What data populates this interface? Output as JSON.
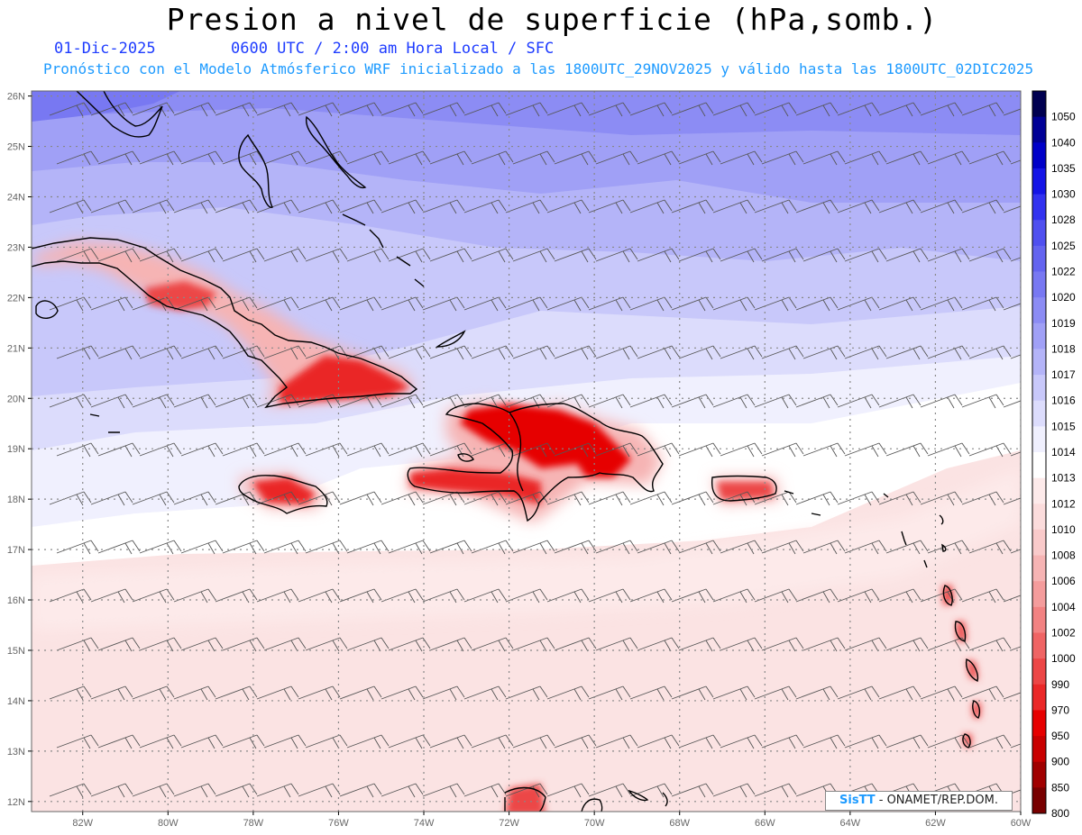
{
  "header": {
    "title": "Presion a nivel de superficie (hPa,somb.)",
    "date": "01-Dic-2025",
    "time_info": "0600 UTC / 2:00 am Hora Local / SFC",
    "forecast_info": "Pronóstico con el Modelo Atmósferico WRF inicializado a las 1800UTC_29NOV2025 y válido hasta las  1800UTC_02DIC2025"
  },
  "map": {
    "lat_labels": [
      "26N",
      "25N",
      "24N",
      "23N",
      "22N",
      "21N",
      "20N",
      "19N",
      "18N",
      "17N",
      "16N",
      "15N",
      "14N",
      "13N",
      "12N"
    ],
    "lon_labels": [
      "82W",
      "80W",
      "78W",
      "76W",
      "74W",
      "72W",
      "70W",
      "68W",
      "66W",
      "64W",
      "62W",
      "60W"
    ],
    "gridline_color": "#888888",
    "coastline_color": "#000000"
  },
  "colorbar": {
    "levels": [
      "1050",
      "1040",
      "1035",
      "1030",
      "1028",
      "1025",
      "1022",
      "1020",
      "1019",
      "1018",
      "1017",
      "1016",
      "1015",
      "1014",
      "1013",
      "1012",
      "1010",
      "1008",
      "1006",
      "1004",
      "1002",
      "1000",
      "990",
      "970",
      "950",
      "900",
      "850",
      "800"
    ],
    "colors": [
      "#000050",
      "#000096",
      "#0000c8",
      "#1414e6",
      "#3232f0",
      "#5050f0",
      "#6464f0",
      "#7878f2",
      "#8c8cf4",
      "#a0a0f6",
      "#b4b4f8",
      "#c8c8fa",
      "#dcdcfc",
      "#f0f0fe",
      "#ffffff",
      "#fdeaea",
      "#fbdcdc",
      "#f9caca",
      "#f6b4b4",
      "#f49c9c",
      "#f28282",
      "#ef6464",
      "#ec4646",
      "#ea2828",
      "#e60000",
      "#c80000",
      "#a00000",
      "#780000"
    ]
  },
  "credit": {
    "logo": "SisTT",
    "text": "- ONAMET/REP.DOM."
  }
}
